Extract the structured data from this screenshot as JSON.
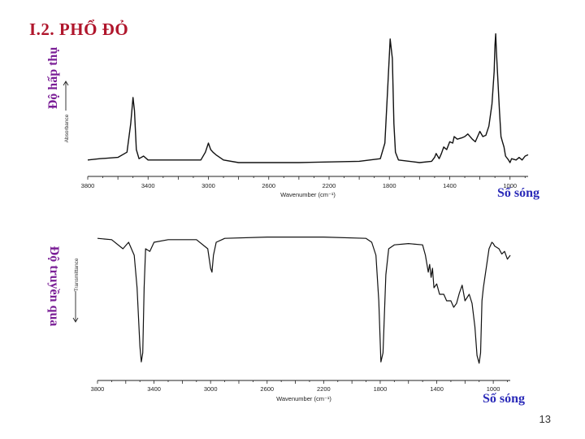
{
  "slide": {
    "title": "I.2. PHỔ ĐỎ",
    "page_number": "13",
    "left_label_top": "Độ hấp thụ",
    "left_label_bottom": "Độ truyền qua",
    "corner_label_top": "Số sóng",
    "corner_label_bottom": "Số sóng"
  },
  "chart_data": [
    {
      "type": "line",
      "ylabel": "Absorbance",
      "xlabel": "Wavenumber (cm⁻¹)",
      "xlim": [
        3800,
        880
      ],
      "ylim": [
        0,
        1
      ],
      "x_reversed": true,
      "xticks": [
        "3800",
        "3400",
        "3000",
        "2600",
        "2200",
        "1800",
        "1400",
        "1000"
      ],
      "grid": false,
      "color": "#111111",
      "x": [
        3800,
        3720,
        3600,
        3540,
        3515,
        3500,
        3490,
        3478,
        3460,
        3430,
        3400,
        3200,
        3050,
        3020,
        3000,
        2985,
        2970,
        2950,
        2900,
        2800,
        2400,
        2000,
        1860,
        1830,
        1810,
        1795,
        1780,
        1770,
        1760,
        1740,
        1600,
        1520,
        1500,
        1490,
        1470,
        1455,
        1440,
        1420,
        1400,
        1380,
        1370,
        1350,
        1320,
        1300,
        1280,
        1250,
        1230,
        1200,
        1180,
        1160,
        1140,
        1120,
        1105,
        1100,
        1095,
        1090,
        1070,
        1060,
        1050,
        1040,
        1030,
        1010,
        1000,
        990,
        960,
        940,
        920,
        900,
        880
      ],
      "y": [
        0.02,
        0.03,
        0.04,
        0.08,
        0.3,
        0.5,
        0.4,
        0.1,
        0.03,
        0.05,
        0.02,
        0.02,
        0.02,
        0.08,
        0.15,
        0.1,
        0.08,
        0.06,
        0.02,
        0.0,
        0.0,
        0.01,
        0.03,
        0.15,
        0.6,
        0.95,
        0.8,
        0.3,
        0.08,
        0.02,
        0.0,
        0.01,
        0.04,
        0.07,
        0.03,
        0.07,
        0.12,
        0.1,
        0.16,
        0.15,
        0.2,
        0.18,
        0.19,
        0.2,
        0.22,
        0.18,
        0.16,
        0.24,
        0.2,
        0.21,
        0.28,
        0.45,
        0.7,
        0.9,
        0.99,
        0.85,
        0.4,
        0.2,
        0.16,
        0.12,
        0.05,
        0.02,
        0.0,
        0.03,
        0.02,
        0.04,
        0.02,
        0.05,
        0.06
      ]
    },
    {
      "type": "line",
      "ylabel": "Transmittance",
      "xlabel": "Wavenumber (cm⁻¹)",
      "xlim": [
        3800,
        880
      ],
      "ylim": [
        0,
        1
      ],
      "x_reversed": true,
      "xticks": [
        "3800",
        "3400",
        "3000",
        "2600",
        "2200",
        "1800",
        "1400",
        "1000"
      ],
      "grid": false,
      "color": "#111111",
      "x": [
        3800,
        3700,
        3620,
        3580,
        3540,
        3520,
        3500,
        3490,
        3480,
        3470,
        3460,
        3430,
        3400,
        3300,
        3100,
        3020,
        3000,
        2990,
        2980,
        2960,
        2920,
        2900,
        2600,
        2200,
        1900,
        1860,
        1830,
        1810,
        1795,
        1780,
        1760,
        1740,
        1700,
        1600,
        1500,
        1480,
        1460,
        1450,
        1440,
        1430,
        1420,
        1400,
        1380,
        1350,
        1330,
        1300,
        1280,
        1260,
        1240,
        1220,
        1200,
        1170,
        1150,
        1130,
        1115,
        1100,
        1090,
        1080,
        1070,
        1050,
        1030,
        1010,
        1000,
        990,
        960,
        940,
        920,
        900,
        880
      ],
      "y": [
        0.98,
        0.97,
        0.9,
        0.95,
        0.85,
        0.6,
        0.15,
        0.03,
        0.1,
        0.6,
        0.9,
        0.88,
        0.95,
        0.97,
        0.97,
        0.9,
        0.75,
        0.72,
        0.85,
        0.95,
        0.97,
        0.98,
        0.99,
        0.99,
        0.98,
        0.95,
        0.85,
        0.5,
        0.03,
        0.1,
        0.7,
        0.9,
        0.93,
        0.94,
        0.93,
        0.85,
        0.72,
        0.78,
        0.68,
        0.75,
        0.6,
        0.63,
        0.55,
        0.55,
        0.5,
        0.5,
        0.45,
        0.48,
        0.56,
        0.62,
        0.5,
        0.55,
        0.48,
        0.3,
        0.08,
        0.02,
        0.1,
        0.5,
        0.6,
        0.75,
        0.9,
        0.95,
        0.94,
        0.92,
        0.9,
        0.86,
        0.88,
        0.82,
        0.85
      ]
    }
  ]
}
